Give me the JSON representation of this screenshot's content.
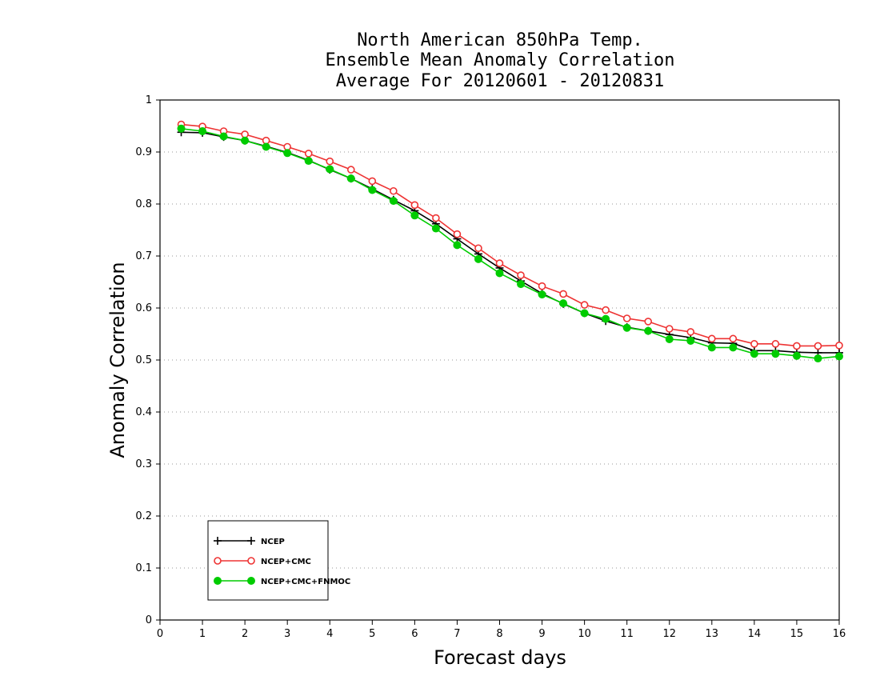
{
  "chart_data": {
    "type": "line",
    "title": [
      "North American 850hPa Temp.",
      "Ensemble Mean Anomaly Correlation",
      "Average For 20120601 - 20120831"
    ],
    "xlabel": "Forecast days",
    "ylabel": "Anomaly Correlation",
    "xlim": [
      0,
      16
    ],
    "ylim": [
      0,
      1
    ],
    "xticks": [
      "0",
      "1",
      "2",
      "3",
      "4",
      "5",
      "6",
      "7",
      "8",
      "9",
      "10",
      "11",
      "12",
      "13",
      "14",
      "15",
      "16"
    ],
    "yticks": [
      "0",
      "0.1",
      "0.2",
      "0.3",
      "0.4",
      "0.5",
      "0.6",
      "0.7",
      "0.8",
      "0.9",
      "1"
    ],
    "grid": "horizontal dotted",
    "legend_position": "bottom-left",
    "x": [
      0.5,
      1,
      1.5,
      2,
      2.5,
      3,
      3.5,
      4,
      4.5,
      5,
      5.5,
      6,
      6.5,
      7,
      7.5,
      8,
      8.5,
      9,
      9.5,
      10,
      10.5,
      11,
      11.5,
      12,
      12.5,
      13,
      13.5,
      14,
      14.5,
      15,
      15.5,
      16
    ],
    "series": [
      {
        "name": "NCEP",
        "color": "#000000",
        "marker": "plus",
        "values": [
          0.938,
          0.937,
          0.929,
          0.922,
          0.911,
          0.899,
          0.884,
          0.866,
          0.849,
          0.829,
          0.808,
          0.787,
          0.762,
          0.733,
          0.704,
          0.677,
          0.652,
          0.628,
          0.608,
          0.59,
          0.575,
          0.563,
          0.556,
          0.549,
          0.543,
          0.533,
          0.532,
          0.518,
          0.518,
          0.515,
          0.514,
          0.514
        ]
      },
      {
        "name": "NCEP+CMC",
        "color": "#ee3333",
        "marker": "open-circle",
        "values": [
          0.953,
          0.949,
          0.94,
          0.934,
          0.922,
          0.91,
          0.897,
          0.882,
          0.866,
          0.844,
          0.825,
          0.798,
          0.773,
          0.742,
          0.715,
          0.686,
          0.663,
          0.642,
          0.627,
          0.606,
          0.596,
          0.58,
          0.574,
          0.56,
          0.554,
          0.541,
          0.541,
          0.531,
          0.531,
          0.527,
          0.527,
          0.528
        ]
      },
      {
        "name": "NCEP+CMC+FNMOC",
        "color": "#00cc00",
        "marker": "filled-circle",
        "values": [
          0.945,
          0.94,
          0.93,
          0.922,
          0.91,
          0.898,
          0.883,
          0.867,
          0.849,
          0.827,
          0.806,
          0.778,
          0.753,
          0.721,
          0.694,
          0.667,
          0.646,
          0.626,
          0.609,
          0.59,
          0.579,
          0.562,
          0.556,
          0.54,
          0.537,
          0.524,
          0.524,
          0.512,
          0.512,
          0.508,
          0.503,
          0.507
        ]
      }
    ]
  }
}
